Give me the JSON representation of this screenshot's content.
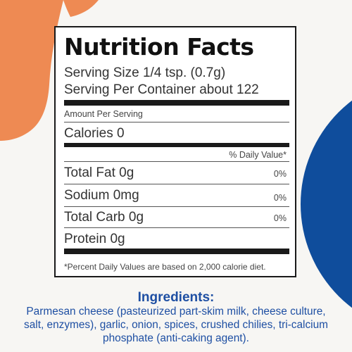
{
  "colors": {
    "orange_blob": "#ee8a53",
    "blue_circle": "#0f4d9c",
    "ingredient_text": "#1e4fa3",
    "label_border": "#1a1a1a"
  },
  "label": {
    "title": "Nutrition Facts",
    "serving_size": "Serving Size 1/4 tsp. (0.7g)",
    "servings_per_container": "Serving Per Container about 122",
    "amount_per_serving": "Amount Per Serving",
    "calories": "Calories 0",
    "daily_value_header": "% Daily Value*",
    "nutrients": [
      {
        "name": "Total Fat 0g",
        "dv": "0%"
      },
      {
        "name": "Sodium 0mg",
        "dv": "0%"
      },
      {
        "name": "Total Carb 0g",
        "dv": "0%"
      },
      {
        "name": "Protein 0g",
        "dv": ""
      }
    ],
    "footnote": "*Percent Daily Values are based on 2,000 calorie diet."
  },
  "ingredients": {
    "heading": "Ingredients:",
    "text": "Parmesan cheese (pasteurized part-skim milk, cheese culture, salt, enzymes), garlic, onion, spices, crushed chilies, tri-calcium phosphate (anti-caking agent)."
  }
}
